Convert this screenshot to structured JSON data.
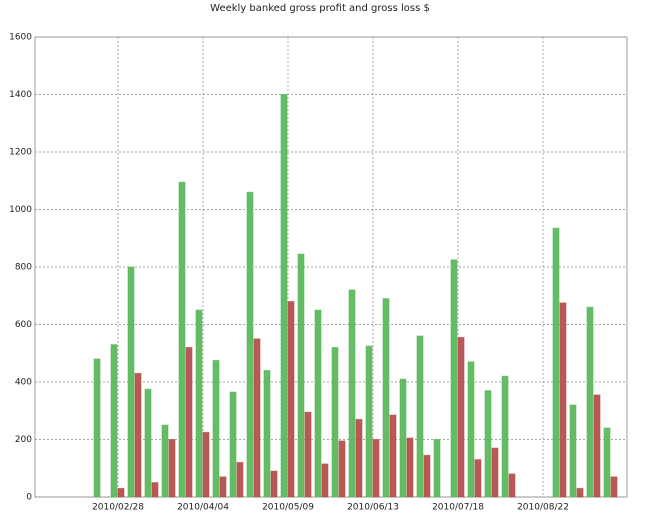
{
  "chart_data": {
    "type": "bar",
    "title": "Weekly banked gross profit and gross loss $",
    "categories": [
      null,
      null,
      null,
      null,
      null,
      "2010/02/28",
      null,
      null,
      null,
      null,
      "2010/04/04",
      null,
      null,
      null,
      null,
      "2010/05/09",
      null,
      null,
      null,
      null,
      "2010/06/13",
      null,
      null,
      null,
      null,
      "2010/07/18",
      null,
      null,
      null,
      null,
      "2010/08/22",
      null,
      null,
      null,
      null
    ],
    "series": [
      {
        "color": "#5cb85c",
        "values": [
          null,
          null,
          null,
          null,
          480,
          530,
          800,
          375,
          250,
          1095,
          650,
          475,
          365,
          1060,
          440,
          1400,
          845,
          650,
          520,
          720,
          525,
          690,
          410,
          560,
          200,
          825,
          470,
          370,
          420,
          null,
          null,
          935,
          320,
          660,
          240
        ]
      },
      {
        "color": "#b5504c",
        "values": [
          null,
          null,
          null,
          null,
          0,
          30,
          430,
          50,
          200,
          520,
          225,
          70,
          120,
          550,
          90,
          680,
          295,
          115,
          195,
          270,
          200,
          285,
          205,
          145,
          0,
          555,
          130,
          170,
          80,
          null,
          null,
          675,
          30,
          355,
          70
        ]
      }
    ],
    "ylim": [
      0,
      1600
    ],
    "yticks": [
      0,
      200,
      400,
      600,
      800,
      1000,
      1200,
      1400,
      1600
    ],
    "grid": true
  }
}
